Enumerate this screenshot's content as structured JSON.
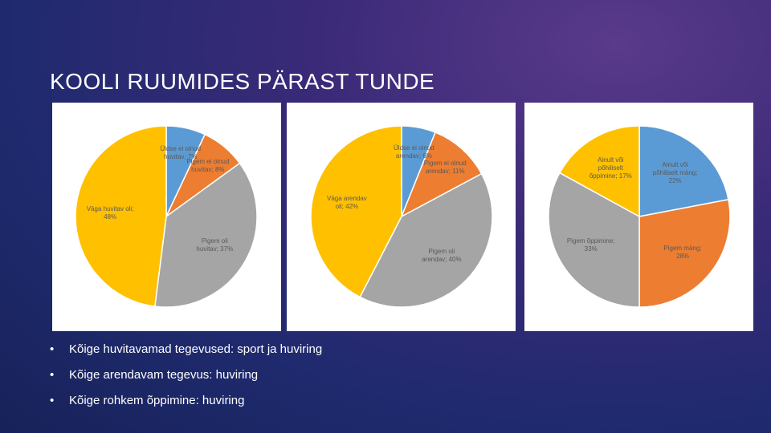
{
  "title": "KOOLI RUUMIDES PÄRAST TUNDE",
  "bullets": [
    "Kõige huvitavamad tegevused: sport ja huviring",
    "Kõige arendavam tegevus: huviring",
    "Kõige rohkem õppimine: huviring"
  ],
  "chart_data": [
    {
      "type": "pie",
      "values": [
        7,
        8,
        37,
        48
      ],
      "value_labels": [
        "Üldse ei olnud huvitav; 7%",
        "Pigem ei olnud huvitav; 8%",
        "Pigem oli huvitav; 37%",
        "Väga huvitav oli; 48%"
      ],
      "colors": [
        "#5b9bd5",
        "#ed7d31",
        "#a5a5a5",
        "#ffc000"
      ]
    },
    {
      "type": "pie",
      "values": [
        6,
        11,
        40,
        42
      ],
      "value_labels": [
        "Üldse ei olnud arendav; 6%",
        "Pigem ei olnud arendav; 11%",
        "Pigem oli arendav; 40%",
        "Väga arendav oli; 42%"
      ],
      "colors": [
        "#5b9bd5",
        "#ed7d31",
        "#a5a5a5",
        "#ffc000"
      ]
    },
    {
      "type": "pie",
      "values": [
        22,
        28,
        33,
        17
      ],
      "value_labels": [
        "Ainult või põhiliselt mäng; 22%",
        "Pigem mäng; 28%",
        "Pigem õppimine; 33%",
        "Ainult või põhiliselt õppimine; 17%"
      ],
      "colors": [
        "#5b9bd5",
        "#ed7d31",
        "#a5a5a5",
        "#ffc000"
      ]
    }
  ]
}
